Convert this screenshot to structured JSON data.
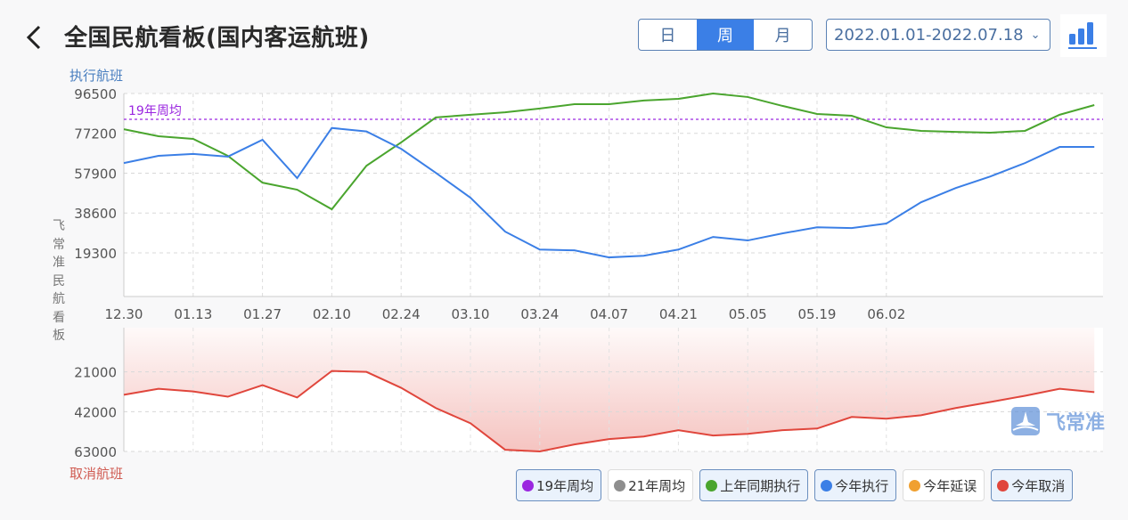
{
  "header": {
    "title": "全国民航看板(国内客运航班)",
    "back_icon": "chevron-left-icon"
  },
  "period_tabs": [
    {
      "label": "日",
      "active": false
    },
    {
      "label": "周",
      "active": true
    },
    {
      "label": "月",
      "active": false
    }
  ],
  "date_range": {
    "value": "2022.01.01-2022.07.18"
  },
  "chart_toggle_icon": "bar-chart-icon",
  "side_label": "飞常准民航看板",
  "watermark": "飞常准",
  "legend": [
    {
      "label": "19年周均",
      "color": "#9b27e0",
      "active": true
    },
    {
      "label": "21年周均",
      "color": "#8e8e8e",
      "active": false
    },
    {
      "label": "上年同期执行",
      "color": "#4aa52e",
      "active": true
    },
    {
      "label": "今年执行",
      "color": "#3b7fe6",
      "active": true
    },
    {
      "label": "今年延误",
      "color": "#f0a030",
      "active": false
    },
    {
      "label": "今年取消",
      "color": "#e0463c",
      "active": true
    }
  ],
  "chart_data": [
    {
      "type": "line",
      "ylabel": "执行航班",
      "ylim": [
        0,
        96500
      ],
      "yticks": [
        "96500",
        "77200",
        "57900",
        "38600",
        "19300"
      ],
      "ytick_values": [
        96500,
        77200,
        57900,
        38600,
        19300
      ],
      "xtick_labels": [
        "12.30",
        "01.13",
        "01.27",
        "02.10",
        "02.24",
        "03.10",
        "03.24",
        "04.07",
        "04.21",
        "05.05",
        "05.19",
        "06.02"
      ],
      "grid": true,
      "reference_line": {
        "label": "19年周均",
        "value": 84000,
        "color": "#9b27e0"
      },
      "series": [
        {
          "name": "上年同期执行",
          "color": "#4aa52e",
          "values": [
            79200,
            75800,
            74500,
            66300,
            53300,
            49900,
            40400,
            61500,
            72800,
            84900,
            86200,
            87400,
            89200,
            91300,
            91300,
            93100,
            93900,
            96500,
            94800,
            90500,
            86600,
            85700,
            80100,
            78400,
            77900,
            77500,
            78400,
            86200,
            90900
          ]
        },
        {
          "name": "今年执行",
          "color": "#3b7fe6",
          "values": [
            62800,
            66300,
            67200,
            65900,
            74100,
            55500,
            79800,
            78100,
            69700,
            58100,
            46000,
            29600,
            20900,
            20500,
            17100,
            17900,
            20900,
            27000,
            25300,
            28700,
            31700,
            31300,
            33500,
            43800,
            50700,
            56300,
            62800,
            70600,
            70600
          ]
        }
      ]
    },
    {
      "type": "area",
      "ylabel": "取消航班",
      "ylim": [
        0,
        63000
      ],
      "inverted": true,
      "yticks": [
        "21000",
        "42000",
        "63000"
      ],
      "ytick_values": [
        21000,
        42000,
        63000
      ],
      "grid": true,
      "series": [
        {
          "name": "今年取消",
          "color": "#e0463c",
          "values": [
            33100,
            29900,
            31300,
            34100,
            28000,
            34500,
            20500,
            21000,
            29400,
            40100,
            48100,
            62100,
            63000,
            59300,
            56500,
            55100,
            51800,
            54600,
            53700,
            51800,
            50900,
            44800,
            45700,
            43900,
            40100,
            36900,
            33600,
            29900,
            31700
          ]
        }
      ]
    }
  ]
}
